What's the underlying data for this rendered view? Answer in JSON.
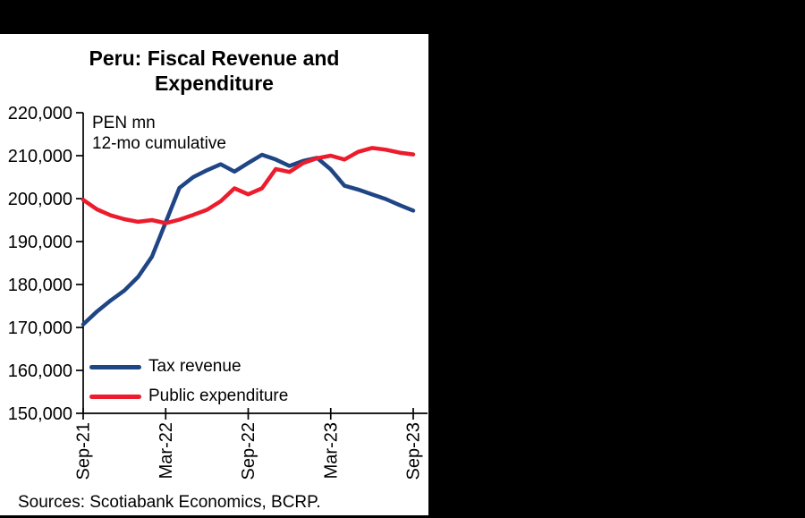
{
  "frame": {
    "background_color": "#000000",
    "panel_color": "#ffffff"
  },
  "chart_data": {
    "type": "line",
    "title": "Peru: Fiscal Revenue and Expenditure",
    "unit_note_line1": "PEN mn",
    "unit_note_line2": "12-mo cumulative",
    "grid": false,
    "legend_position": "inside-bottom-left",
    "ylim": [
      150000,
      220000
    ],
    "y_ticks": [
      150000,
      160000,
      170000,
      180000,
      190000,
      200000,
      210000,
      220000
    ],
    "y_tick_labels": [
      "150,000",
      "160,000",
      "170,000",
      "180,000",
      "190,000",
      "200,000",
      "210,000",
      "220,000"
    ],
    "x": [
      "Sep-21",
      "Oct-21",
      "Nov-21",
      "Dec-21",
      "Jan-22",
      "Feb-22",
      "Mar-22",
      "Apr-22",
      "May-22",
      "Jun-22",
      "Jul-22",
      "Aug-22",
      "Sep-22",
      "Oct-22",
      "Nov-22",
      "Dec-22",
      "Jan-23",
      "Feb-23",
      "Mar-23",
      "Apr-23",
      "May-23",
      "Jun-23",
      "Jul-23",
      "Aug-23",
      "Sep-23"
    ],
    "x_tick_indices": [
      0,
      6,
      12,
      18,
      24
    ],
    "x_tick_labels": [
      "Sep-21",
      "Mar-22",
      "Sep-22",
      "Mar-23",
      "Sep-23"
    ],
    "series": [
      {
        "name": "Tax revenue",
        "color": "#1f4584",
        "values": [
          170700,
          173700,
          176300,
          178600,
          181800,
          186500,
          194500,
          202500,
          205000,
          206600,
          208000,
          206300,
          208300,
          210200,
          209100,
          207600,
          208800,
          209500,
          206800,
          203000,
          202100,
          201000,
          199900,
          198500,
          197200
        ]
      },
      {
        "name": "Public expenditure",
        "color": "#ec1c2c",
        "values": [
          199700,
          197500,
          196100,
          195200,
          194600,
          195000,
          194300,
          195100,
          196200,
          197400,
          199400,
          202400,
          201000,
          202400,
          206900,
          206200,
          208300,
          209400,
          210000,
          209100,
          210900,
          211800,
          211400,
          210700,
          210300
        ]
      }
    ],
    "axis_color": "#000000"
  },
  "footer": {
    "sources": "Sources: Scotiabank Economics, BCRP."
  }
}
